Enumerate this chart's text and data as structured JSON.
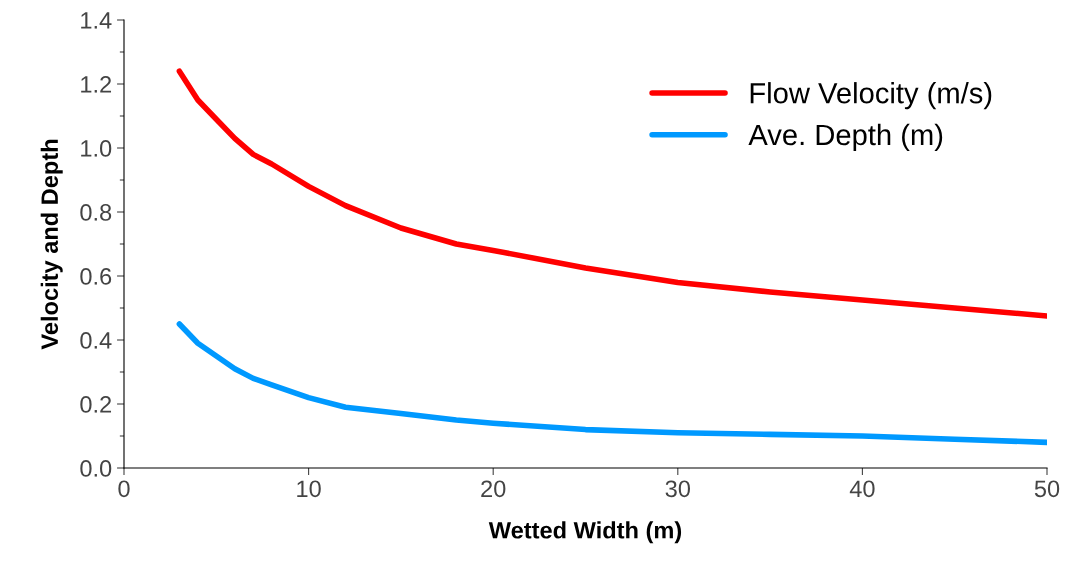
{
  "chart_data": {
    "type": "line",
    "xlabel": "Wetted Width (m)",
    "ylabel": "Velocity and Depth",
    "x": [
      3,
      4,
      5,
      6,
      7,
      8,
      10,
      12,
      15,
      18,
      20,
      25,
      30,
      35,
      40,
      45,
      50
    ],
    "series": [
      {
        "name": "Flow Velocity (m/s)",
        "color": "#ff0000",
        "values": [
          1.24,
          1.15,
          1.09,
          1.03,
          0.98,
          0.95,
          0.88,
          0.82,
          0.75,
          0.7,
          0.68,
          0.625,
          0.58,
          0.55,
          0.525,
          0.5,
          0.475
        ]
      },
      {
        "name": "Ave. Depth (m)",
        "color": "#0099ff",
        "values": [
          0.45,
          0.39,
          0.35,
          0.31,
          0.28,
          0.26,
          0.22,
          0.19,
          0.17,
          0.15,
          0.14,
          0.12,
          0.11,
          0.105,
          0.1,
          0.09,
          0.08
        ]
      }
    ],
    "xlim": [
      0,
      50
    ],
    "xticks": [
      0,
      10,
      20,
      30,
      40,
      50
    ],
    "ylim": [
      0,
      1.4
    ],
    "yticks": [
      {
        "value": 0,
        "label": "0.0"
      },
      {
        "value": 0.1,
        "label": null
      },
      {
        "value": 0.2,
        "label": "0.2"
      },
      {
        "value": 0.3,
        "label": null
      },
      {
        "value": 0.4,
        "label": "0.4"
      },
      {
        "value": 0.5,
        "label": null
      },
      {
        "value": 0.6,
        "label": "0.6"
      },
      {
        "value": 0.7,
        "label": null
      },
      {
        "value": 0.8,
        "label": "0.8"
      },
      {
        "value": 0.9,
        "label": null
      },
      {
        "value": 1.0,
        "label": "1.0"
      },
      {
        "value": 1.1,
        "label": null
      },
      {
        "value": 1.2,
        "label": "1.2"
      },
      {
        "value": 1.3,
        "label": null
      },
      {
        "value": 1.4,
        "label": "1.4"
      }
    ],
    "grid": false,
    "legend": "top right",
    "marker": "none",
    "line_style": "solid"
  }
}
